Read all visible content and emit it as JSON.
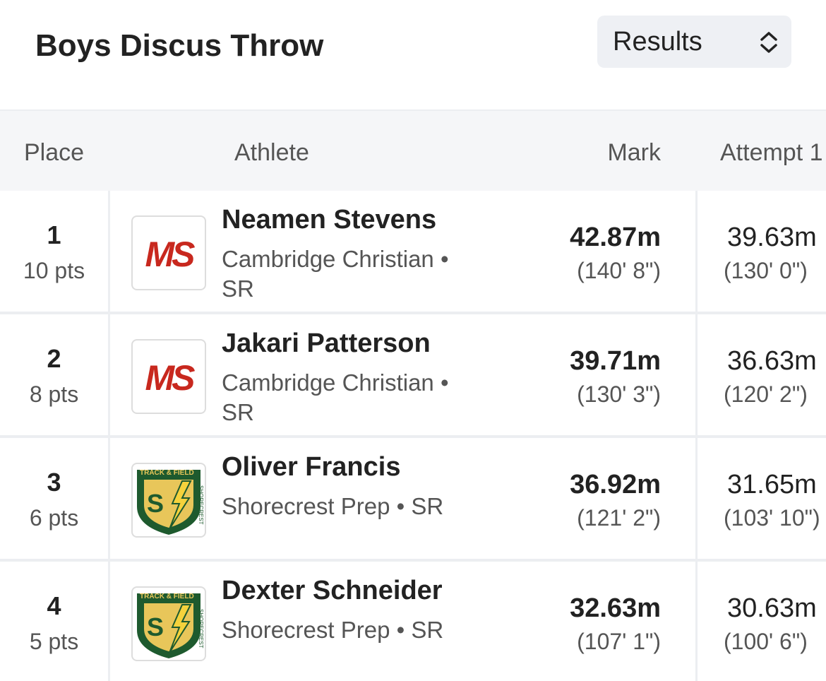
{
  "header": {
    "title": "Boys Discus Throw",
    "view_select": "Results"
  },
  "table": {
    "columns": [
      "Place",
      "Athlete",
      "Mark",
      "Attempt 1"
    ],
    "rows": [
      {
        "place": "1",
        "points": "10 pts",
        "name": "Neamen Stevens",
        "affiliation": "Cambridge Christian • SR",
        "logo": [
          "MS"
        ],
        "mark": "42.87m",
        "mark_imperial": "(140' 8\")",
        "attempt_1": "39.63m",
        "attempt_1_imperial": "(130' 0\")"
      },
      {
        "place": "2",
        "points": "8 pts",
        "name": "Jakari Patterson",
        "affiliation": "Cambridge Christian • SR",
        "logo": [
          "MS"
        ],
        "mark": "39.71m",
        "mark_imperial": "(130' 3\")",
        "attempt_1": "36.63m",
        "attempt_1_imperial": "(120' 2\")"
      },
      {
        "place": "3",
        "points": "6 pts",
        "name": "Oliver Francis",
        "affiliation": "Shorecrest Prep • SR",
        "logo": [
          "TRACK & FIELD",
          "S",
          "SHORECREST"
        ],
        "mark": "36.92m",
        "mark_imperial": "(121' 2\")",
        "attempt_1": "31.65m",
        "attempt_1_imperial": "(103' 10\")"
      },
      {
        "place": "4",
        "points": "5 pts",
        "name": "Dexter Schneider",
        "affiliation": "Shorecrest Prep • SR",
        "logo": [
          "TRACK & FIELD",
          "S",
          "SHORECREST"
        ],
        "mark": "32.63m",
        "mark_imperial": "(107' 1\")",
        "attempt_1": "30.63m",
        "attempt_1_imperial": "(100' 6\")"
      }
    ]
  }
}
